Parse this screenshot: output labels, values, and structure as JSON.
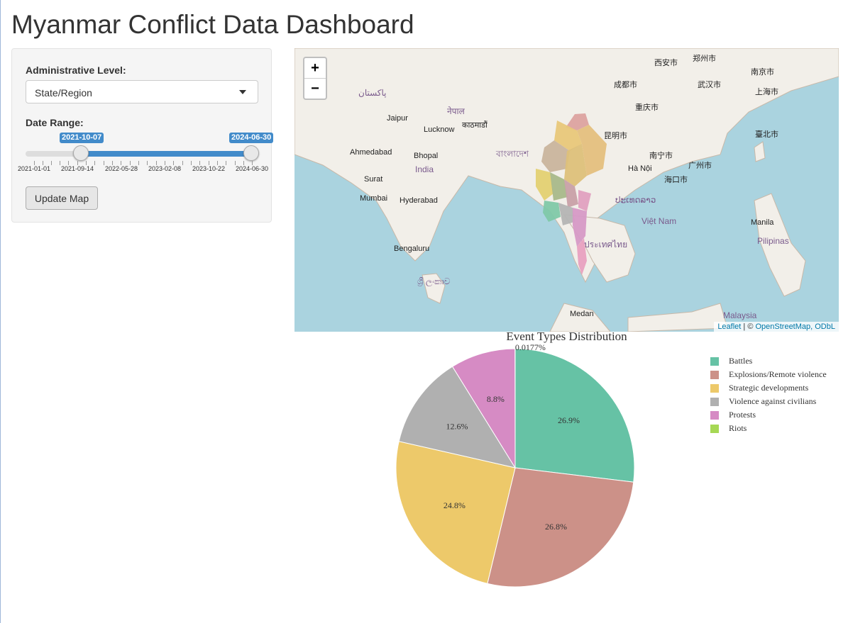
{
  "page": {
    "title": "Myanmar Conflict Data Dashboard"
  },
  "controls": {
    "admin_label": "Administrative Level:",
    "admin_value": "State/Region",
    "date_label": "Date Range:",
    "date_from": "2021-10-07",
    "date_to": "2024-06-30",
    "ticks": [
      "2021-01-01",
      "2021-09-14",
      "2022-05-28",
      "2023-02-08",
      "2023-10-22",
      "2024-06-30"
    ],
    "update_button": "Update Map"
  },
  "map": {
    "zoom_in": "+",
    "zoom_out": "−",
    "attribution_leaflet": "Leaflet",
    "attribution_sep": " | © ",
    "attribution_osm": "OpenStreetMap, ODbL",
    "places": {
      "india": "India",
      "jaipur": "Jaipur",
      "lucknow": "Lucknow",
      "ahmedabad": "Ahmedabad",
      "bhopal": "Bhopal",
      "surat": "Surat",
      "mumbai": "Mumbai",
      "hyderabad": "Hyderabad",
      "bengaluru": "Bengaluru",
      "medan": "Medan",
      "malaysia": "Malaysia",
      "manila": "Manila",
      "pilipinas": "Pilipinas",
      "vietnam": "Việt Nam",
      "hanoi": "Hà Nội",
      "chengdu": "成都市",
      "chongqing": "重庆市",
      "wuhan": "武汉市",
      "shanghai": "上海市",
      "xian": "西安市",
      "zhengzhou": "郑州市",
      "nanjing": "南京市",
      "kunming": "昆明市",
      "nanning": "南宁市",
      "guangzhou": "广州市",
      "haikou": "海口市",
      "taibei": "臺北市",
      "nepal": "नेपाल",
      "kathmandu": "काठमाडौं",
      "bangladesh": "বাংলাদেশ",
      "pakistan": "پاکستان",
      "thailand": "ประเทศไทย",
      "laos": "ປະເທດລາວ",
      "srilanka": "ශ්‍රී ලංකාව"
    }
  },
  "chart_data": {
    "type": "pie",
    "title": "Event Types Distribution",
    "labels": [
      "Battles",
      "Explosions/Remote violence",
      "Strategic developments",
      "Violence against civilians",
      "Protests",
      "Riots"
    ],
    "values": [
      26.9,
      26.8,
      24.8,
      12.6,
      8.8,
      0.0177
    ],
    "value_labels": [
      "26.9%",
      "26.8%",
      "24.8%",
      "12.6%",
      "8.8%",
      "0.0177%"
    ],
    "colors": [
      "#66c2a5",
      "#cc9188",
      "#edc96a",
      "#b0b0b0",
      "#d68bc4",
      "#a6d854"
    ]
  }
}
